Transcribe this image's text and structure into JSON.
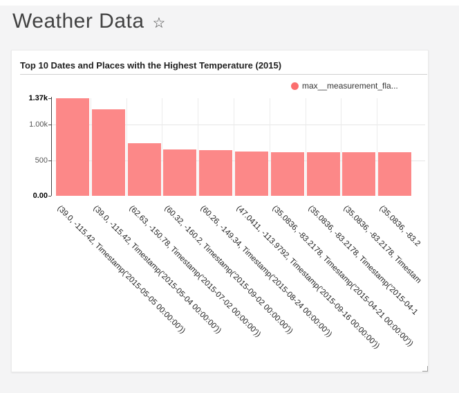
{
  "page": {
    "title": "Weather Data",
    "star_icon": "☆"
  },
  "card": {
    "title": "Top 10 Dates and Places with the Highest Temperature (2015)"
  },
  "legend": {
    "label": "max__measurement_fla...",
    "color": "#fb6e6e"
  },
  "chart_data": {
    "type": "bar",
    "title": "Top 10 Dates and Places with the Highest Temperature (2015)",
    "legend_entries": [
      "max__measurement_fla..."
    ],
    "legend_position": "top-right",
    "bar_color": "#fc8888",
    "grid": true,
    "ylim": [
      0,
      1370
    ],
    "yticks": [
      {
        "label": "1.37k",
        "value": 1370,
        "bold": true,
        "grid": false
      },
      {
        "label": "1.00k",
        "value": 1000,
        "bold": false,
        "grid": true
      },
      {
        "label": "500",
        "value": 500,
        "bold": false,
        "grid": true
      },
      {
        "label": "0.00",
        "value": 0,
        "bold": true,
        "grid": false
      }
    ],
    "categories": [
      "(39.0, -115.42, Timestamp('2015-05-05 00:00:00'))",
      "(39.0, -115.42, Timestamp('2015-05-04 00:00:00'))",
      "(62.63, -150.78, Timestamp('2015-07-02 00:00:00'))",
      "(60.32, -160.2, Timestamp('2015-09-02 00:00:00'))",
      "(60.26, -149.34, Timestamp('2015-08-24 00:00:00'))",
      "(47.0411, -113.9792, Timestamp('2015-09-16 00:00:00'))",
      "(35.0836, -83.2178, Timestamp('2015-04-21 00:00:00'))",
      "(35.0836, -83.2178, Timestamp('2015-04-1",
      "(35.0836, -83.2178, Timestam",
      "(35.0836, -83.2"
    ],
    "values": [
      1370,
      1210,
      737,
      652,
      645,
      622,
      613,
      613,
      613,
      612
    ]
  }
}
